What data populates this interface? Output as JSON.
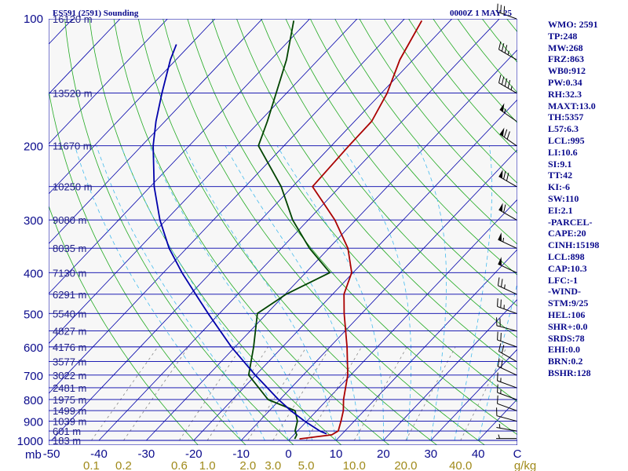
{
  "header": {
    "left_title": "ES591 (2591) Sounding",
    "right_title": "0000Z  1 MAY 25"
  },
  "indices": [
    "WMO: 2591",
    "TP:248",
    "MW:268",
    "FRZ:863",
    "WB0:912",
    "PW:0.34",
    "RH:32.3",
    "MAXT:13.0",
    "TH:5357",
    "L57:6.3",
    "LCL:995",
    "LI:10.6",
    "SI:9.1",
    "TT:42",
    "KI:-6",
    "SW:110",
    "EI:2.1",
    "-PARCEL-",
    "CAPE:20",
    "CINH:15198",
    "LCL:898",
    "CAP:10.3",
    "LFC:-1",
    "-WIND-",
    "STM:9/25",
    "HEL:106",
    "SHR+:0.0",
    "SRDS:78",
    "EHI:0.0",
    "BRN:0.2",
    "BSHR:128"
  ],
  "colors": {
    "temperature": "#aa0000",
    "dewpoint": "#004400",
    "parcel": "#0000aa",
    "isobar": "#0000aa",
    "isotherm": "#0000aa",
    "dry_adiabat": "#22aa22",
    "moist_adiabat": "#44bbee",
    "mixing_ratio": "#888888",
    "frame_text": "#0a0a8c",
    "tick_text": "#0a0a8c",
    "mixing_ratio_text": "#a08a1a",
    "wind_barb": "#000000"
  },
  "chart_data": {
    "type": "line",
    "diagram": "skew-T log-p",
    "xlabel": "C",
    "ylabel": "mb",
    "ylim": [
      1000,
      100
    ],
    "xlim": [
      -50,
      50
    ],
    "pressure_ticks": [
      {
        "p": 100,
        "label": "100"
      },
      {
        "p": 200,
        "label": "200"
      },
      {
        "p": 300,
        "label": "300"
      },
      {
        "p": 400,
        "label": "400"
      },
      {
        "p": 500,
        "label": "500"
      },
      {
        "p": 600,
        "label": "600"
      },
      {
        "p": 700,
        "label": "700"
      },
      {
        "p": 800,
        "label": "800"
      },
      {
        "p": 900,
        "label": "900"
      },
      {
        "p": 1000,
        "label": "1000"
      }
    ],
    "temperature_ticks": [
      "-50",
      "-40",
      "-30",
      "-20",
      "-10",
      "0",
      "10",
      "20",
      "30",
      "40"
    ],
    "mixing_ratio_ticks": [
      {
        "w": 0.1,
        "label": "0.1"
      },
      {
        "w": 0.2,
        "label": "0.2"
      },
      {
        "w": 0.6,
        "label": "0.6"
      },
      {
        "w": 1.0,
        "label": "1.0"
      },
      {
        "w": 2.0,
        "label": "2.0"
      },
      {
        "w": 3.0,
        "label": "3.0"
      },
      {
        "w": 5.0,
        "label": "5.0"
      },
      {
        "w": 10.0,
        "label": "10.0"
      },
      {
        "w": 20.0,
        "label": "20.0"
      },
      {
        "w": 40.0,
        "label": "40.0"
      }
    ],
    "mixing_ratio_unit": "g/kg",
    "heights": [
      {
        "p": 100,
        "label": "16120 m"
      },
      {
        "p": 150,
        "label": "13520 m"
      },
      {
        "p": 200,
        "label": "11670 m"
      },
      {
        "p": 250,
        "label": "10250 m"
      },
      {
        "p": 300,
        "label": "9080 m"
      },
      {
        "p": 350,
        "label": "8035 m"
      },
      {
        "p": 400,
        "label": "7130 m"
      },
      {
        "p": 450,
        "label": "6291 m"
      },
      {
        "p": 500,
        "label": "5540 m"
      },
      {
        "p": 550,
        "label": "4827 m"
      },
      {
        "p": 600,
        "label": "4176 m"
      },
      {
        "p": 650,
        "label": "3577 m"
      },
      {
        "p": 700,
        "label": "3022 m"
      },
      {
        "p": 750,
        "label": "2481 m"
      },
      {
        "p": 800,
        "label": "1975 m"
      },
      {
        "p": 850,
        "label": "1499 m"
      },
      {
        "p": 900,
        "label": "1039 m"
      },
      {
        "p": 950,
        "label": "601 m"
      },
      {
        "p": 1000,
        "label": "183 m"
      }
    ],
    "series": [
      {
        "key": "temperature",
        "points": [
          [
            992,
            2.0
          ],
          [
            970,
            8.0
          ],
          [
            950,
            8.6
          ],
          [
            900,
            7.2
          ],
          [
            850,
            5.6
          ],
          [
            800,
            3.4
          ],
          [
            700,
            -0.6
          ],
          [
            600,
            -6.4
          ],
          [
            500,
            -13.7
          ],
          [
            450,
            -17.6
          ],
          [
            400,
            -20.3
          ],
          [
            350,
            -26.0
          ],
          [
            300,
            -34.4
          ],
          [
            250,
            -45.8
          ],
          [
            200,
            -46.3
          ],
          [
            175,
            -46.4
          ],
          [
            150,
            -48.8
          ],
          [
            125,
            -52.8
          ],
          [
            101,
            -56.0
          ]
        ]
      },
      {
        "key": "dewpoint",
        "points": [
          [
            992,
            1.0
          ],
          [
            970,
            0.6
          ],
          [
            950,
            -0.5
          ],
          [
            900,
            -2.0
          ],
          [
            850,
            -4.6
          ],
          [
            800,
            -12.5
          ],
          [
            700,
            -21.5
          ],
          [
            600,
            -26.1
          ],
          [
            500,
            -32.0
          ],
          [
            450,
            -29.8
          ],
          [
            400,
            -24.9
          ],
          [
            350,
            -34.1
          ],
          [
            300,
            -43.3
          ],
          [
            250,
            -52.4
          ],
          [
            200,
            -65.4
          ],
          [
            175,
            -68.4
          ],
          [
            150,
            -72.2
          ],
          [
            125,
            -76.7
          ],
          [
            101,
            -83.0
          ]
        ]
      },
      {
        "key": "parcel",
        "points": [
          [
            965,
            6.7
          ],
          [
            950,
            4.7
          ],
          [
            900,
            -0.5
          ],
          [
            850,
            -5.5
          ],
          [
            800,
            -10.3
          ],
          [
            700,
            -20.1
          ],
          [
            600,
            -30.8
          ],
          [
            500,
            -42.4
          ],
          [
            450,
            -48.9
          ],
          [
            400,
            -56.1
          ],
          [
            350,
            -63.7
          ],
          [
            300,
            -71.3
          ],
          [
            250,
            -79.2
          ],
          [
            200,
            -87.6
          ],
          [
            175,
            -91.9
          ],
          [
            150,
            -96.3
          ],
          [
            125,
            -101.2
          ],
          [
            115,
            -103.0
          ]
        ]
      }
    ],
    "wind_barbs": [
      {
        "p": 990,
        "dir": 270,
        "kt": 5
      },
      {
        "p": 950,
        "dir": 280,
        "kt": 5
      },
      {
        "p": 900,
        "dir": 285,
        "kt": 10
      },
      {
        "p": 850,
        "dir": 290,
        "kt": 10
      },
      {
        "p": 800,
        "dir": 290,
        "kt": 15
      },
      {
        "p": 750,
        "dir": 290,
        "kt": 15
      },
      {
        "p": 700,
        "dir": 295,
        "kt": 20
      },
      {
        "p": 650,
        "dir": 300,
        "kt": 20
      },
      {
        "p": 600,
        "dir": 290,
        "kt": 20
      },
      {
        "p": 550,
        "dir": 285,
        "kt": 20
      },
      {
        "p": 500,
        "dir": 290,
        "kt": 25
      },
      {
        "p": 450,
        "dir": 295,
        "kt": 25
      },
      {
        "p": 400,
        "dir": 295,
        "kt": 50
      },
      {
        "p": 350,
        "dir": 295,
        "kt": 55
      },
      {
        "p": 300,
        "dir": 300,
        "kt": 60
      },
      {
        "p": 250,
        "dir": 300,
        "kt": 70
      },
      {
        "p": 200,
        "dir": 305,
        "kt": 70
      },
      {
        "p": 175,
        "dir": 305,
        "kt": 55
      },
      {
        "p": 150,
        "dir": 300,
        "kt": 45
      },
      {
        "p": 125,
        "dir": 300,
        "kt": 35
      },
      {
        "p": 100,
        "dir": 290,
        "kt": 30
      }
    ]
  }
}
